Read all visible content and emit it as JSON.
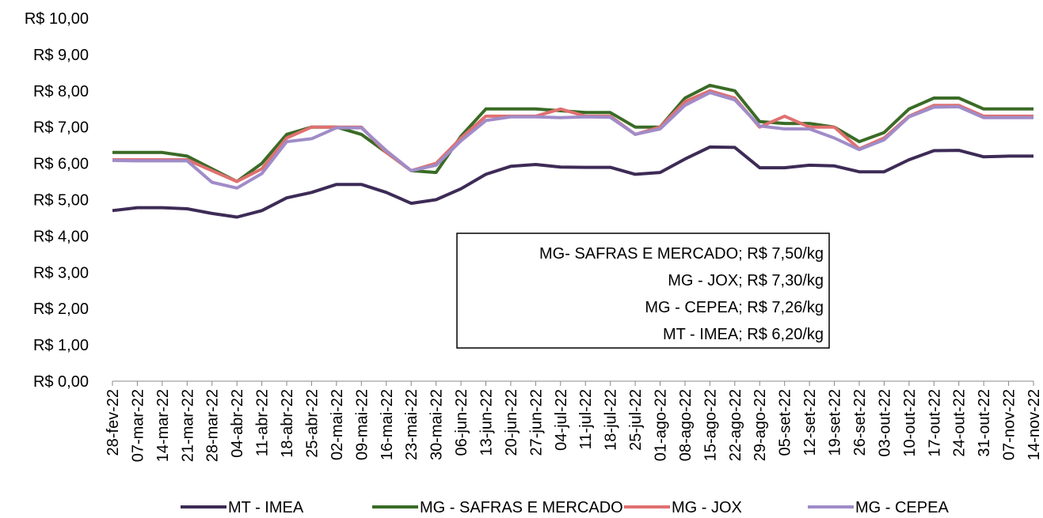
{
  "chart_data": {
    "type": "line",
    "categories": [
      "28-fev-22",
      "07-mar-22",
      "14-mar-22",
      "21-mar-22",
      "28-mar-22",
      "04-abr-22",
      "11-abr-22",
      "18-abr-22",
      "25-abr-22",
      "02-mai-22",
      "09-mai-22",
      "16-mai-22",
      "23-mai-22",
      "30-mai-22",
      "06-jun-22",
      "13-jun-22",
      "20-jun-22",
      "27-jun-22",
      "04-jul-22",
      "11-jul-22",
      "18-jul-22",
      "25-jul-22",
      "01-ago-22",
      "08-ago-22",
      "15-ago-22",
      "22-ago-22",
      "29-ago-22",
      "05-set-22",
      "12-set-22",
      "19-set-22",
      "26-set-22",
      "03-out-22",
      "10-out-22",
      "17-out-22",
      "24-out-22",
      "31-out-22",
      "07-nov-22",
      "14-nov-22"
    ],
    "series": [
      {
        "name": "MT - IMEA",
        "color": "#3d2b56",
        "values": [
          4.7,
          4.78,
          4.78,
          4.75,
          4.62,
          4.52,
          4.7,
          5.05,
          5.2,
          5.42,
          5.42,
          5.2,
          4.9,
          5.0,
          5.3,
          5.7,
          5.92,
          5.97,
          5.9,
          5.89,
          5.89,
          5.7,
          5.75,
          6.12,
          6.45,
          6.44,
          5.88,
          5.88,
          5.95,
          5.93,
          5.77,
          5.77,
          6.1,
          6.35,
          6.36,
          6.18,
          6.2,
          6.2
        ]
      },
      {
        "name": "MG - SAFRAS E MERCADO",
        "color": "#3a6b26",
        "values": [
          6.3,
          6.3,
          6.3,
          6.2,
          5.85,
          5.5,
          6.0,
          6.8,
          7.0,
          7.0,
          6.8,
          6.3,
          5.8,
          5.75,
          6.75,
          7.5,
          7.5,
          7.5,
          7.45,
          7.4,
          7.4,
          7.0,
          7.0,
          7.8,
          8.15,
          8.0,
          7.15,
          7.1,
          7.1,
          7.0,
          6.6,
          6.85,
          7.5,
          7.8,
          7.8,
          7.5,
          7.5,
          7.5
        ]
      },
      {
        "name": "MG - JOX",
        "color": "#e07070",
        "values": [
          6.1,
          6.1,
          6.1,
          6.1,
          5.8,
          5.5,
          5.85,
          6.7,
          7.0,
          7.0,
          7.0,
          6.3,
          5.8,
          6.0,
          6.7,
          7.3,
          7.3,
          7.3,
          7.5,
          7.3,
          7.3,
          6.8,
          7.0,
          7.7,
          8.0,
          7.8,
          7.0,
          7.3,
          7.0,
          7.0,
          6.4,
          6.7,
          7.3,
          7.6,
          7.6,
          7.3,
          7.3,
          7.3
        ]
      },
      {
        "name": "MG - CEPEA",
        "color": "#a08cc8",
        "values": [
          6.08,
          6.07,
          6.07,
          6.07,
          5.48,
          5.32,
          5.72,
          6.6,
          6.68,
          6.98,
          6.98,
          6.35,
          5.8,
          5.95,
          6.62,
          7.18,
          7.28,
          7.28,
          7.26,
          7.28,
          7.27,
          6.8,
          6.95,
          7.6,
          7.95,
          7.75,
          7.03,
          6.95,
          6.95,
          6.7,
          6.38,
          6.65,
          7.28,
          7.55,
          7.56,
          7.26,
          7.26,
          7.26
        ]
      }
    ],
    "ylim": [
      0,
      10
    ],
    "yticks": [
      {
        "value": 0,
        "label": "R$ 0,00"
      },
      {
        "value": 1,
        "label": "R$ 1,00"
      },
      {
        "value": 2,
        "label": "R$ 2,00"
      },
      {
        "value": 3,
        "label": "R$ 3,00"
      },
      {
        "value": 4,
        "label": "R$ 4,00"
      },
      {
        "value": 5,
        "label": "R$ 5,00"
      },
      {
        "value": 6,
        "label": "R$ 6,00"
      },
      {
        "value": 7,
        "label": "R$ 7,00"
      },
      {
        "value": 8,
        "label": "R$ 8,00"
      },
      {
        "value": 9,
        "label": "R$ 9,00"
      },
      {
        "value": 10,
        "label": "R$ 10,00"
      }
    ],
    "annotations": [
      "MG- SAFRAS E MERCADO; R$ 7,50/kg",
      "MG - JOX; R$ 7,30/kg",
      "MG - CEPEA; R$ 7,26/kg",
      "MT - IMEA; R$ 6,20/kg"
    ],
    "legend": "bottom"
  }
}
